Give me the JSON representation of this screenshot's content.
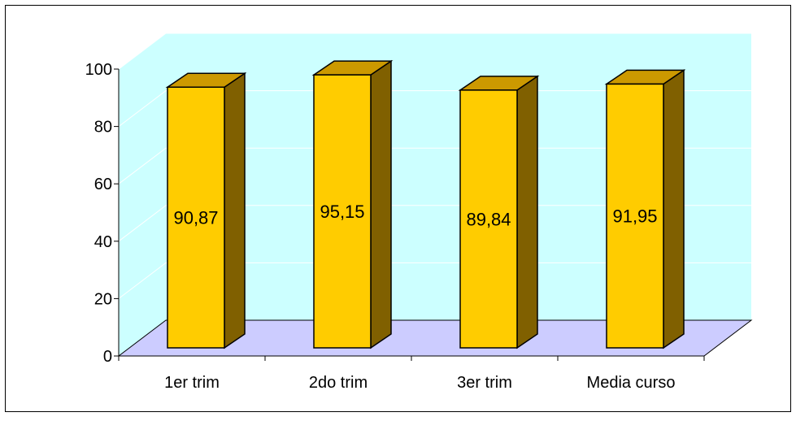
{
  "chart_data": {
    "type": "bar",
    "categories": [
      "1er trim",
      "2do trim",
      "3er trim",
      "Media curso"
    ],
    "values": [
      90.87,
      95.15,
      89.84,
      91.95
    ],
    "value_labels": [
      "90,87",
      "95,15",
      "89,84",
      "91,95"
    ],
    "y_ticks": [
      "0",
      "20",
      "40",
      "60",
      "80",
      "100"
    ],
    "ylim": [
      0,
      100
    ],
    "title": "",
    "xlabel": "",
    "ylabel": "",
    "grid": true,
    "legend": "none",
    "colors": {
      "bar_front": "#FFCC00",
      "bar_top": "#CC9900",
      "bar_side": "#806000",
      "back_wall": "#CCFFFF",
      "floor": "#CCCCFF",
      "grid": "#FFFFFF",
      "axis": "#000000"
    }
  }
}
